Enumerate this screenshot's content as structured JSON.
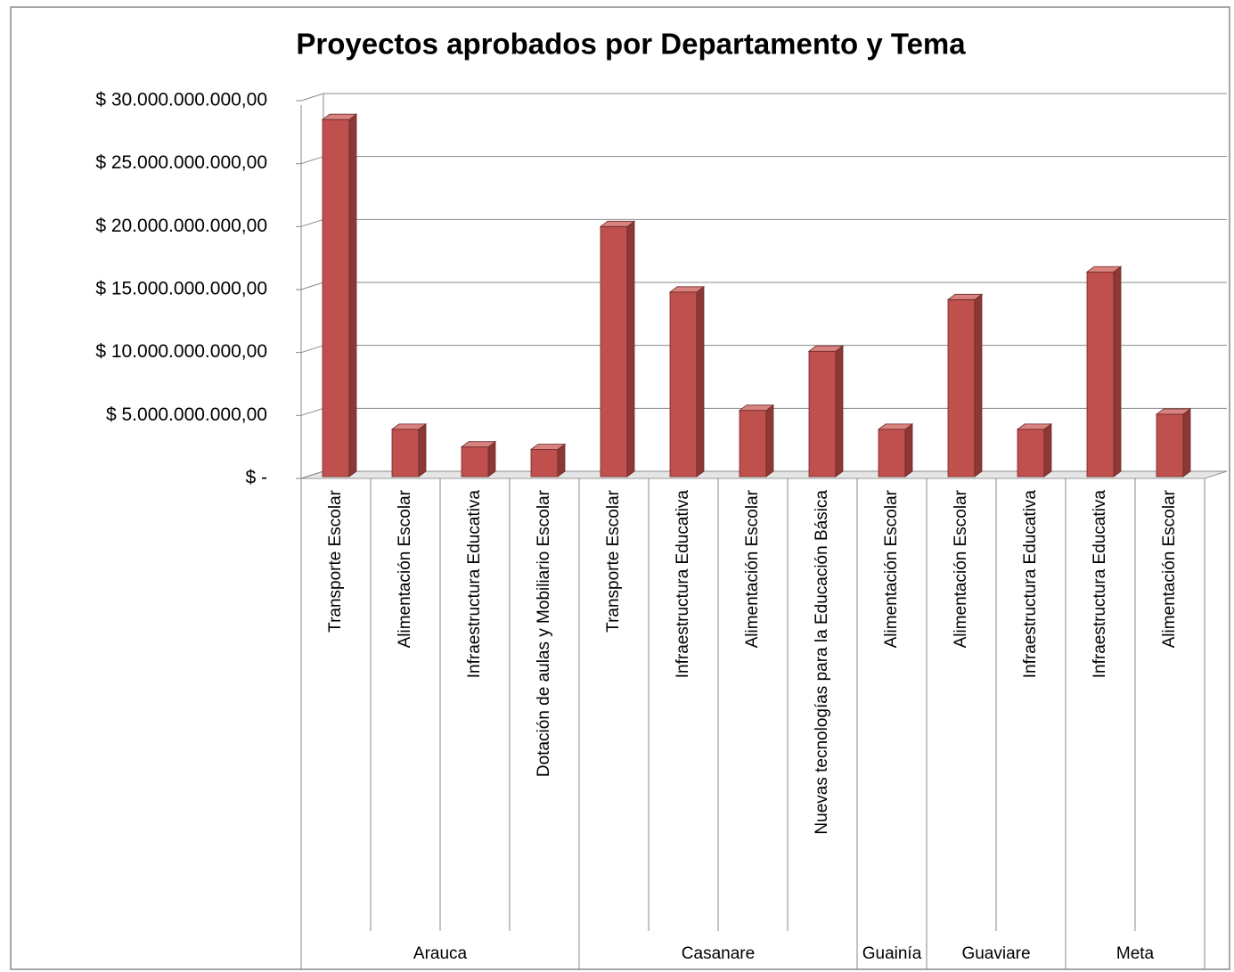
{
  "chart_data": {
    "type": "bar",
    "title": "Proyectos aprobados por Departamento y Tema",
    "groups": [
      {
        "name": "Arauca",
        "categories": [
          "Transporte Escolar",
          "Alimentación Escolar",
          "Infraestructura Educativa",
          "Dotación de aulas y Mobiliario Escolar"
        ]
      },
      {
        "name": "Casanare",
        "categories": [
          "Transporte Escolar",
          "Infraestructura Educativa",
          "Alimentación Escolar",
          "Nuevas tecnologías para la Educación Básica"
        ]
      },
      {
        "name": "Guainía",
        "categories": [
          "Alimentación Escolar"
        ]
      },
      {
        "name": "Guaviare",
        "categories": [
          "Alimentación Escolar",
          "Infraestructura Educativa"
        ]
      },
      {
        "name": "Meta",
        "categories": [
          "Infraestructura Educativa",
          "Alimentación Escolar"
        ]
      }
    ],
    "values": [
      28500000000,
      3900000000,
      2500000000,
      2300000000,
      20000000000,
      14800000000,
      5400000000,
      10100000000,
      3900000000,
      14200000000,
      3900000000,
      16400000000,
      5100000000
    ],
    "color": "#c0504d",
    "ylim": [
      0,
      30000000000
    ],
    "yticks": [
      {
        "value": 0,
        "label": "$ -"
      },
      {
        "value": 5000000000,
        "label": "$ 5.000.000.000,00"
      },
      {
        "value": 10000000000,
        "label": "$ 10.000.000.000,00"
      },
      {
        "value": 15000000000,
        "label": "$ 15.000.000.000,00"
      },
      {
        "value": 20000000000,
        "label": "$ 20.000.000.000,00"
      },
      {
        "value": 25000000000,
        "label": "$ 25.000.000.000,00"
      },
      {
        "value": 30000000000,
        "label": "$ 30.000.000.000,00"
      }
    ],
    "grid": true
  }
}
